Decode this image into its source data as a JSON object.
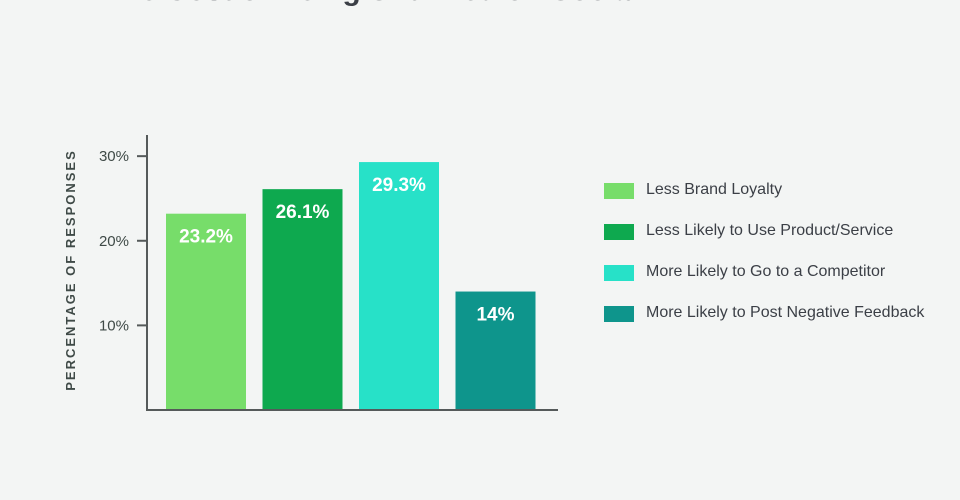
{
  "chart_data": {
    "type": "bar",
    "title": "The Cost of Being Shunned on Social",
    "ylabel": "PERCENTAGE OF RESPONSES",
    "xlabel": "",
    "ylim": [
      0,
      32.5
    ],
    "yticks": [
      10,
      20,
      30
    ],
    "ytick_labels": [
      "10%",
      "20%",
      "30%"
    ],
    "grid": false,
    "legend_position": "right",
    "categories": [
      "Less Brand Loyalty",
      "Less Likely to Use Product/Service",
      "More Likely to Go to a Competitor",
      "More Likely to Post Negative Feedback"
    ],
    "values": [
      23.2,
      26.1,
      29.3,
      14
    ],
    "value_labels": [
      "23.2%",
      "26.1%",
      "29.3%",
      "14%"
    ],
    "colors": [
      "#77dd6a",
      "#0ea94f",
      "#27e1c8",
      "#0e958c"
    ]
  },
  "colors": {
    "axis": "#555a5a",
    "background": "#f3f5f4"
  }
}
